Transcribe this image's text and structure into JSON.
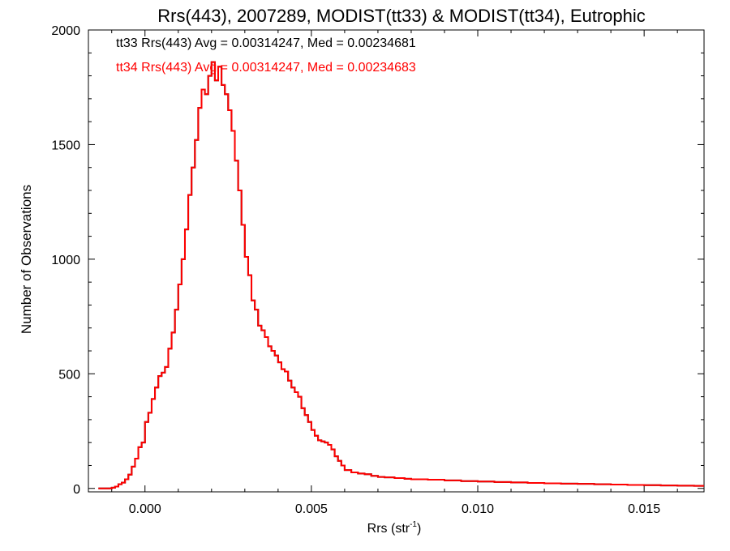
{
  "chart_data": {
    "type": "line",
    "title": "Rrs(443), 2007289, MODIST(tt33) & MODIST(tt34), Eutrophic",
    "xlabel": "Rrs (str",
    "xlabel_superscript": "-1",
    "xlabel_suffix": ")",
    "ylabel": "Number of Observations",
    "xlim": [
      -0.0017,
      0.0168
    ],
    "ylim": [
      -15,
      2000
    ],
    "xticks": [
      0.0,
      0.005,
      0.01,
      0.015
    ],
    "xtick_labels": [
      "0.000",
      "0.005",
      "0.010",
      "0.015"
    ],
    "yticks": [
      0,
      500,
      1000,
      1500,
      2000
    ],
    "ytick_labels": [
      "0",
      "500",
      "1000",
      "1500",
      "2000"
    ],
    "grid": false,
    "annotations": [
      {
        "text": "tt33 Rrs(443) Avg = 0.00314247, Med = 0.00234681",
        "color": "#000000"
      },
      {
        "text": "tt34 Rrs(443) Avg = 0.00314247, Med = 0.00234683",
        "color": "#ff0000"
      }
    ],
    "series": [
      {
        "name": "tt33",
        "color": "#000000",
        "style": "histogram-step",
        "x": [
          -0.0014,
          -0.001,
          -0.0009,
          -0.0008,
          -0.0007,
          -0.0006,
          -0.0005,
          -0.0004,
          -0.0003,
          -0.0002,
          -0.0001,
          0.0,
          0.0001,
          0.0002,
          0.0003,
          0.0004,
          0.0005,
          0.0006,
          0.0007,
          0.0008,
          0.0009,
          0.001,
          0.0011,
          0.0012,
          0.0013,
          0.0014,
          0.0015,
          0.0016,
          0.0017,
          0.0018,
          0.0019,
          0.002,
          0.0021,
          0.0022,
          0.0023,
          0.0024,
          0.0025,
          0.0026,
          0.0027,
          0.0028,
          0.0029,
          0.003,
          0.0031,
          0.0032,
          0.0033,
          0.0034,
          0.0035,
          0.0036,
          0.0037,
          0.0038,
          0.0039,
          0.004,
          0.0041,
          0.0042,
          0.0043,
          0.0044,
          0.0045,
          0.0046,
          0.0047,
          0.0048,
          0.0049,
          0.005,
          0.0051,
          0.0052,
          0.0053,
          0.0054,
          0.0055,
          0.0056,
          0.0057,
          0.0058,
          0.0059,
          0.006,
          0.0062,
          0.0064,
          0.0066,
          0.0068,
          0.007,
          0.0072,
          0.0075,
          0.0078,
          0.008,
          0.0085,
          0.009,
          0.0095,
          0.01,
          0.0105,
          0.011,
          0.0115,
          0.012,
          0.0125,
          0.013,
          0.0135,
          0.014,
          0.0145,
          0.015,
          0.0155,
          0.016,
          0.0165,
          0.0168
        ],
        "values": [
          0,
          3,
          8,
          18,
          25,
          40,
          60,
          95,
          130,
          180,
          200,
          290,
          330,
          390,
          440,
          490,
          505,
          530,
          610,
          680,
          780,
          890,
          1000,
          1130,
          1280,
          1400,
          1520,
          1660,
          1740,
          1720,
          1800,
          1860,
          1780,
          1840,
          1760,
          1720,
          1650,
          1560,
          1430,
          1300,
          1150,
          1010,
          930,
          820,
          780,
          710,
          690,
          660,
          620,
          600,
          580,
          550,
          520,
          510,
          470,
          440,
          420,
          400,
          350,
          320,
          290,
          255,
          230,
          210,
          205,
          200,
          190,
          170,
          140,
          120,
          100,
          80,
          70,
          65,
          62,
          55,
          50,
          48,
          45,
          42,
          40,
          38,
          35,
          32,
          30,
          28,
          26,
          24,
          22,
          21,
          20,
          18,
          17,
          15,
          14,
          13,
          12,
          11,
          10
        ]
      },
      {
        "name": "tt34",
        "color": "#ff0000",
        "style": "histogram-step",
        "x": [
          -0.0014,
          -0.001,
          -0.0009,
          -0.0008,
          -0.0007,
          -0.0006,
          -0.0005,
          -0.0004,
          -0.0003,
          -0.0002,
          -0.0001,
          0.0,
          0.0001,
          0.0002,
          0.0003,
          0.0004,
          0.0005,
          0.0006,
          0.0007,
          0.0008,
          0.0009,
          0.001,
          0.0011,
          0.0012,
          0.0013,
          0.0014,
          0.0015,
          0.0016,
          0.0017,
          0.0018,
          0.0019,
          0.002,
          0.0021,
          0.0022,
          0.0023,
          0.0024,
          0.0025,
          0.0026,
          0.0027,
          0.0028,
          0.0029,
          0.003,
          0.0031,
          0.0032,
          0.0033,
          0.0034,
          0.0035,
          0.0036,
          0.0037,
          0.0038,
          0.0039,
          0.004,
          0.0041,
          0.0042,
          0.0043,
          0.0044,
          0.0045,
          0.0046,
          0.0047,
          0.0048,
          0.0049,
          0.005,
          0.0051,
          0.0052,
          0.0053,
          0.0054,
          0.0055,
          0.0056,
          0.0057,
          0.0058,
          0.0059,
          0.006,
          0.0062,
          0.0064,
          0.0066,
          0.0068,
          0.007,
          0.0072,
          0.0075,
          0.0078,
          0.008,
          0.0085,
          0.009,
          0.0095,
          0.01,
          0.0105,
          0.011,
          0.0115,
          0.012,
          0.0125,
          0.013,
          0.0135,
          0.014,
          0.0145,
          0.015,
          0.0155,
          0.016,
          0.0165,
          0.0168
        ],
        "values": [
          0,
          3,
          8,
          18,
          25,
          40,
          60,
          95,
          130,
          180,
          200,
          290,
          330,
          390,
          440,
          490,
          505,
          530,
          610,
          680,
          780,
          890,
          1000,
          1130,
          1280,
          1400,
          1520,
          1660,
          1740,
          1720,
          1800,
          1860,
          1780,
          1840,
          1760,
          1720,
          1650,
          1560,
          1430,
          1300,
          1150,
          1010,
          930,
          820,
          780,
          710,
          690,
          660,
          620,
          600,
          580,
          550,
          520,
          510,
          470,
          440,
          420,
          400,
          350,
          320,
          290,
          255,
          230,
          210,
          205,
          200,
          190,
          170,
          140,
          120,
          100,
          80,
          70,
          65,
          62,
          55,
          50,
          48,
          45,
          42,
          40,
          38,
          35,
          32,
          30,
          28,
          26,
          24,
          22,
          21,
          20,
          18,
          17,
          15,
          14,
          13,
          12,
          11,
          10
        ]
      }
    ]
  }
}
